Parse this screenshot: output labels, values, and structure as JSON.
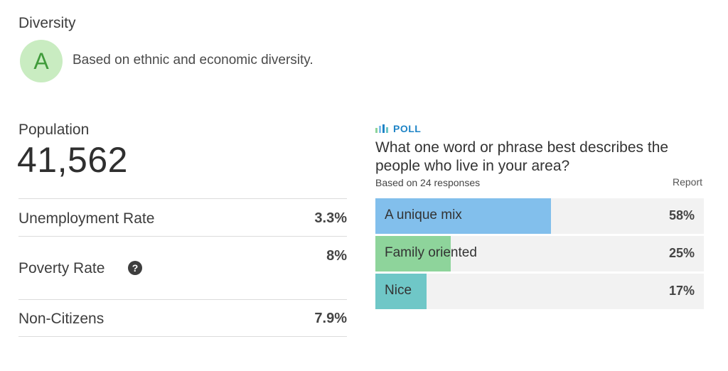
{
  "diversity": {
    "title": "Diversity",
    "grade": "A",
    "description": "Based on ethnic and economic diversity."
  },
  "population": {
    "label": "Population",
    "value": "41,562"
  },
  "stats": [
    {
      "label": "Unemployment Rate",
      "value": "3.3%"
    },
    {
      "label": "Poverty Rate",
      "value": "8%",
      "help_icon": "question-mark-icon"
    },
    {
      "label": "Non-Citizens",
      "value": "7.9%"
    }
  ],
  "poll": {
    "tag": "POLL",
    "question": "What one word or phrase best describes the people who live in your area?",
    "subtitle": "Based on 24 responses",
    "report_label": "Report",
    "options": [
      {
        "label": "A unique mix",
        "percent_label": "58%",
        "fraction": 0.58,
        "color": "#82bfec"
      },
      {
        "label": "Family oriented",
        "percent_label": "25%",
        "fraction": 0.25,
        "color": "#8ed49b"
      },
      {
        "label": "Nice",
        "percent_label": "17%",
        "fraction": 0.17,
        "color": "#6fc7c7"
      }
    ]
  },
  "colors": {
    "grade_bg": "#c9ecc1",
    "grade_fg": "#3f9b3a",
    "poll_accent": "#1f84c6",
    "bar_track": "#f2f2f2"
  }
}
